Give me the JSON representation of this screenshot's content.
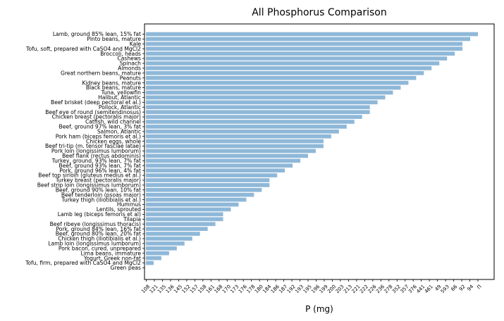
{
  "chart_data": {
    "type": "bar",
    "orientation": "horizontal",
    "title": "All Phosphorus Comparison",
    "xlabel": "P (mg)",
    "ylabel": "",
    "bar_color": "#8fb8d8",
    "grid": false,
    "categories": [
      "Lamb, ground 85% lean, 15% fat",
      "Pinto beans, mature",
      "Kale",
      "Tofu, soft, prepared with CaSO4 and MgCl2",
      "Broccoli, heads",
      "Cashews",
      "Spinach",
      "Almonds",
      "Great northern beans, mature",
      "Peanuts",
      "Kidney beans, mature",
      "Black beans, mature",
      "Tuna, yellowfin",
      "Halibut, Atlantic",
      "Beef brisket (deep pectoral et al.)",
      "Pollock, Atlantic",
      "Beef eye of round (semitendinosus)",
      "Chicken breast (pectoralis major)",
      "Catfish, wild channel",
      "Beef, ground 97% lean, 3% fat",
      "Salmon, Atlantic",
      "Pork ham (biceps femoris et al.)",
      "Chicken eggs, whole",
      "Beef tri-tip (m. tensor fasciae latae)",
      "Pork loin (longissimus lumborum)",
      "Beef flank (rectus abdominis)",
      "Turkey, ground, 93% lean, 7% fat",
      "Beef, ground 93% lean, 7% fat",
      "Pork, ground 96% lean, 4% fat",
      "Beef top sirloin (gluteus medius et al.)",
      "Turkey breast (pectoralis major)",
      "Beef strip loin (longissimus lumborum)",
      "Beef, ground 90% lean, 10% fat",
      "Beef tenderloin (psoas major)",
      "Turkey thigh (iliotibialis et al.)",
      "Hummus",
      "Lentils, sprouted",
      "Lamb leg (biceps femoris et al)",
      "Tilapia",
      "Beef ribeye (longissimus thoracis)",
      "Pork, ground 84% lean, 16% fat",
      "Beef, ground 80% lean, 20% fat",
      "Chicken thigh (iliotibialis et al.)",
      "Lamb loin (longissimus lumborum)",
      "Pork bacon, cured, unprepared",
      "Lima beans, immature",
      "Yogurt, Greek non-fat",
      "Tofu, firm, prepared with CaSO4 and MgCl2",
      "Green peas"
    ],
    "x_tick_labels": [
      "108",
      "121",
      "135",
      "136",
      "145",
      "152",
      "157",
      "158",
      "161",
      "168",
      "170",
      "173",
      "176",
      "178",
      "180",
      "184",
      "186",
      "187",
      "192",
      "193",
      "195",
      "196",
      "199",
      "200",
      "203",
      "213",
      "221",
      "222",
      "226",
      "236",
      "278",
      "352",
      "357",
      "376",
      "441",
      "461",
      "49",
      "593",
      "66",
      "92",
      "94",
      "Π"
    ],
    "values": [
      43,
      42,
      41,
      41,
      40,
      39,
      38,
      37,
      36,
      35,
      34,
      33,
      32,
      31,
      30,
      29,
      29,
      28,
      27,
      26,
      25,
      24,
      23,
      23,
      22,
      21,
      20,
      19,
      18,
      17,
      16,
      16,
      15,
      14,
      13,
      12,
      11,
      10,
      10,
      9,
      8,
      7,
      6,
      5,
      4,
      3,
      2,
      1,
      0
    ]
  }
}
